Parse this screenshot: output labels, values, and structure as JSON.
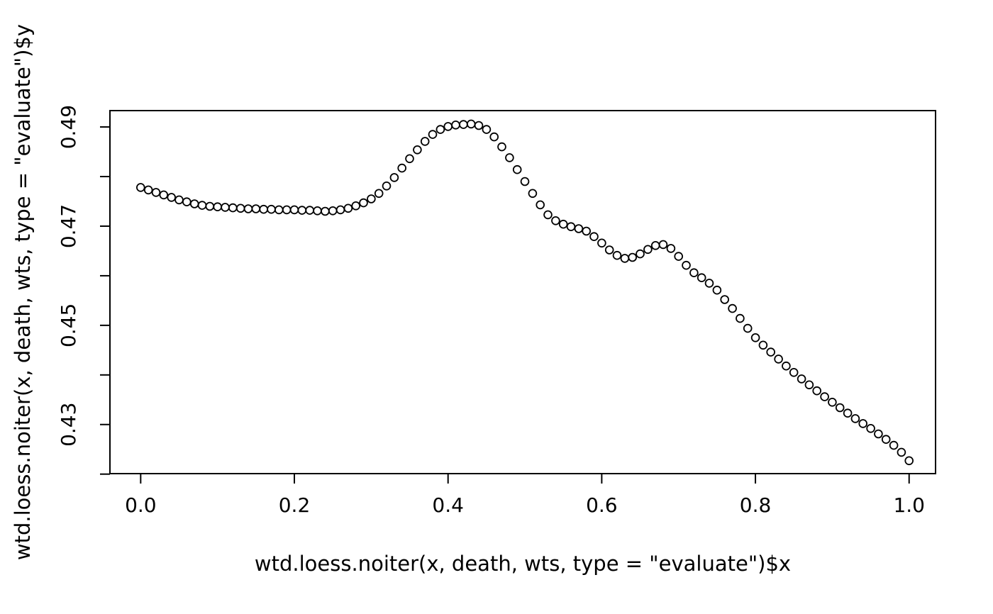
{
  "figure": {
    "background_color": "#ffffff",
    "foreground_color": "#000000"
  },
  "chart_data": {
    "type": "scatter",
    "marker": "open-circle",
    "title": "",
    "xlabel": "wtd.loess.noiter(x, death, wts, type = \"evaluate\")$x",
    "ylabel": "wtd.loess.noiter(x, death, wts, type = \"evaluate\")$y",
    "grid": false,
    "legend": "none",
    "xlim": [
      -0.04,
      1.0344
    ],
    "ylim": [
      0.4201,
      0.4933
    ],
    "x_ticks": [
      0.0,
      0.2,
      0.4,
      0.6,
      0.8,
      1.0
    ],
    "x_tick_labels": [
      "0.0",
      "0.2",
      "0.4",
      "0.6",
      "0.8",
      "1.0"
    ],
    "y_ticks_labeled": [
      0.43,
      0.45,
      0.47,
      0.49
    ],
    "y_tick_labels": [
      "0.43",
      "0.45",
      "0.47",
      "0.49"
    ],
    "y_ticks_minor": [
      0.42,
      0.44,
      0.46,
      0.48
    ],
    "x": [
      0.0,
      0.01,
      0.02,
      0.03,
      0.04,
      0.05,
      0.06,
      0.07,
      0.08,
      0.09,
      0.1,
      0.11,
      0.12,
      0.13,
      0.14,
      0.15,
      0.16,
      0.17,
      0.18,
      0.19,
      0.2,
      0.21,
      0.22,
      0.23,
      0.24,
      0.25,
      0.26,
      0.27,
      0.28,
      0.29,
      0.3,
      0.31,
      0.32,
      0.33,
      0.34,
      0.35,
      0.36,
      0.37,
      0.38,
      0.39,
      0.4,
      0.41,
      0.42,
      0.43,
      0.44,
      0.45,
      0.46,
      0.47,
      0.48,
      0.49,
      0.5,
      0.51,
      0.52,
      0.53,
      0.54,
      0.55,
      0.56,
      0.57,
      0.58,
      0.59,
      0.6,
      0.61,
      0.62,
      0.63,
      0.64,
      0.65,
      0.66,
      0.67,
      0.68,
      0.69,
      0.7,
      0.71,
      0.72,
      0.73,
      0.74,
      0.75,
      0.76,
      0.77,
      0.78,
      0.79,
      0.8,
      0.81,
      0.82,
      0.83,
      0.84,
      0.85,
      0.86,
      0.87,
      0.88,
      0.89,
      0.9,
      0.91,
      0.92,
      0.93,
      0.94,
      0.95,
      0.96,
      0.97,
      0.98,
      0.99,
      1.0
    ],
    "y": [
      0.4778,
      0.4773,
      0.4768,
      0.4763,
      0.4758,
      0.4753,
      0.4749,
      0.4745,
      0.4742,
      0.474,
      0.4739,
      0.4738,
      0.4737,
      0.4736,
      0.4735,
      0.4735,
      0.4734,
      0.4734,
      0.4733,
      0.4733,
      0.4733,
      0.4732,
      0.4732,
      0.4731,
      0.473,
      0.4731,
      0.4733,
      0.4736,
      0.4741,
      0.4747,
      0.4755,
      0.4766,
      0.4781,
      0.4798,
      0.4817,
      0.4836,
      0.4854,
      0.4871,
      0.4885,
      0.4895,
      0.4901,
      0.4904,
      0.4905,
      0.4906,
      0.4903,
      0.4895,
      0.488,
      0.486,
      0.4838,
      0.4814,
      0.479,
      0.4766,
      0.4743,
      0.4723,
      0.4711,
      0.4704,
      0.4699,
      0.4695,
      0.469,
      0.4679,
      0.4666,
      0.4652,
      0.4641,
      0.4635,
      0.4637,
      0.4644,
      0.4653,
      0.4661,
      0.4663,
      0.4655,
      0.4639,
      0.4621,
      0.4606,
      0.4596,
      0.4585,
      0.4571,
      0.4552,
      0.4534,
      0.4514,
      0.4494,
      0.4475,
      0.446,
      0.4446,
      0.4432,
      0.4418,
      0.4405,
      0.4392,
      0.438,
      0.4368,
      0.4356,
      0.4345,
      0.4334,
      0.4323,
      0.4312,
      0.4302,
      0.4292,
      0.4281,
      0.427,
      0.4258,
      0.4244,
      0.4227
    ]
  }
}
